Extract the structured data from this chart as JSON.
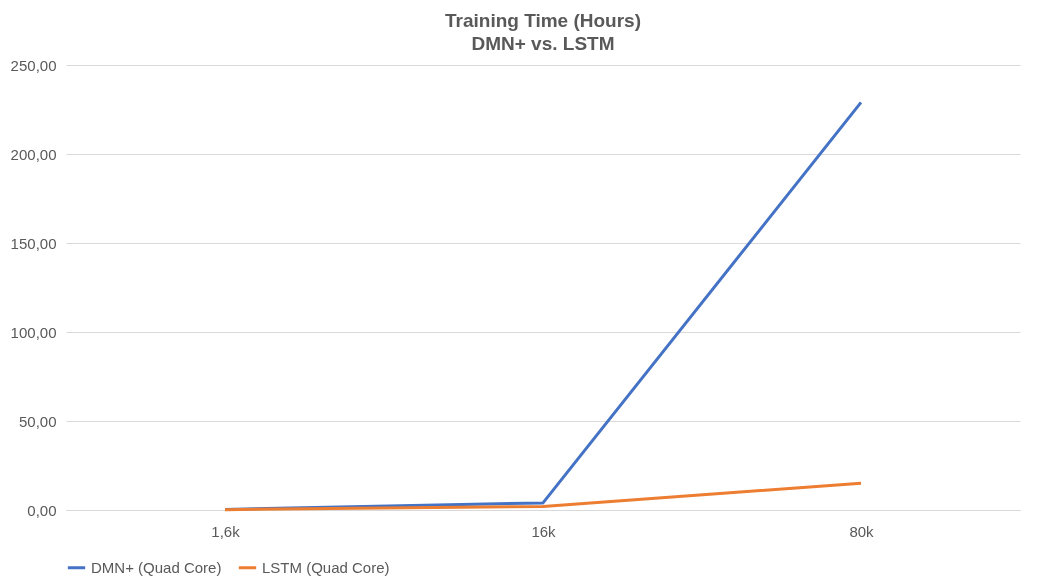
{
  "chart_data": {
    "type": "line",
    "title": "Training Time (Hours)",
    "subtitle": "DMN+ vs. LSTM",
    "categories": [
      "1,6k",
      "16k",
      "80k"
    ],
    "series": [
      {
        "name": "DMN+ (Quad Core)",
        "color": "#4472c4",
        "values": [
          0.3,
          4,
          229
        ]
      },
      {
        "name": "LSTM (Quad Core)",
        "color": "#ed7d31",
        "values": [
          0.2,
          2,
          15
        ]
      }
    ],
    "ylim": [
      0,
      250
    ],
    "yticks": [
      {
        "value": 0,
        "label": "0,00"
      },
      {
        "value": 50,
        "label": "50,00"
      },
      {
        "value": 100,
        "label": "100,00"
      },
      {
        "value": 150,
        "label": "150,00"
      },
      {
        "value": 200,
        "label": "200,00"
      },
      {
        "value": 250,
        "label": "250,00"
      }
    ],
    "grid": "y",
    "legend": "bottom",
    "marker": "none",
    "line_style": "solid"
  }
}
